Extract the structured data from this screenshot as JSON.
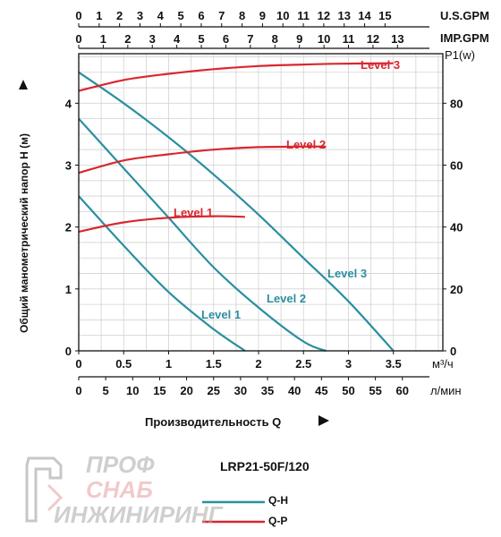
{
  "chart_data": {
    "type": "line",
    "x_axis_labels": {
      "usgpm": "U.S.GPM",
      "impgpm": "IMP.GPM",
      "m3h": "м³/ч",
      "lmin": "л/мин"
    },
    "usgpm_ticks": [
      "0",
      "1",
      "2",
      "3",
      "4",
      "5",
      "6",
      "7",
      "8",
      "9",
      "10",
      "11",
      "12",
      "13",
      "14",
      "15"
    ],
    "impgpm_ticks": [
      "0",
      "1",
      "2",
      "3",
      "4",
      "5",
      "6",
      "7",
      "8",
      "9",
      "10",
      "11",
      "12",
      "13"
    ],
    "m3h_ticks": [
      "0",
      "0.5",
      "1",
      "1.5",
      "2",
      "2.5",
      "3",
      "3.5"
    ],
    "lmin_ticks": [
      "0",
      "5",
      "10",
      "15",
      "20",
      "25",
      "30",
      "35",
      "40",
      "45",
      "50",
      "55",
      "60"
    ],
    "y_left_label": "Общий манометрический напор H (м)",
    "y_left_ticks": [
      "0",
      "1",
      "2",
      "3",
      "4"
    ],
    "y_left_range": [
      0,
      4.8
    ],
    "y_right_label": "P1(w)",
    "y_right_ticks": [
      "0",
      "20",
      "40",
      "60",
      "80"
    ],
    "y_right_range": [
      0,
      96
    ],
    "xlabel": "Производительность Q",
    "x_range_m3h": [
      0,
      4.05
    ],
    "series_qh": [
      {
        "name": "Level 1",
        "x": [
          0,
          0.5,
          1.0,
          1.5,
          1.85
        ],
        "y": [
          2.5,
          1.7,
          0.95,
          0.35,
          0
        ]
      },
      {
        "name": "Level 2",
        "x": [
          0,
          0.5,
          1.0,
          1.5,
          2.0,
          2.5,
          2.75
        ],
        "y": [
          3.75,
          2.95,
          2.15,
          1.35,
          0.7,
          0.15,
          0
        ]
      },
      {
        "name": "Level 3",
        "x": [
          0,
          0.5,
          1.0,
          1.5,
          2.0,
          2.5,
          3.0,
          3.5
        ],
        "y": [
          4.5,
          4.0,
          3.45,
          2.85,
          2.2,
          1.5,
          0.8,
          0
        ]
      }
    ],
    "series_qp": [
      {
        "name": "Level 1",
        "x": [
          0,
          0.5,
          1.0,
          1.5,
          1.85
        ],
        "y": [
          38.5,
          41.5,
          43,
          43.5,
          43.3
        ]
      },
      {
        "name": "Level 2",
        "x": [
          0,
          0.5,
          1.0,
          1.5,
          2.0,
          2.5,
          2.75
        ],
        "y": [
          57.5,
          61.5,
          63.5,
          65,
          65.8,
          66,
          66
        ]
      },
      {
        "name": "Level 3",
        "x": [
          0,
          0.5,
          1.0,
          1.5,
          2.0,
          2.5,
          3.0,
          3.5
        ],
        "y": [
          84,
          87.5,
          89.5,
          91,
          92,
          92.5,
          92.8,
          92.9
        ]
      }
    ],
    "colors": {
      "qh": "#2a8fa0",
      "qp": "#d9272e",
      "grid": "#d2d2d2"
    }
  },
  "model": "LRP21-50F/120",
  "legend": {
    "qh": "Q-H",
    "qp": "Q-P"
  },
  "logo": {
    "line1": "ПРОФ",
    "line2": "СНАБ",
    "line3": "ИНЖИНИРИНГ"
  }
}
